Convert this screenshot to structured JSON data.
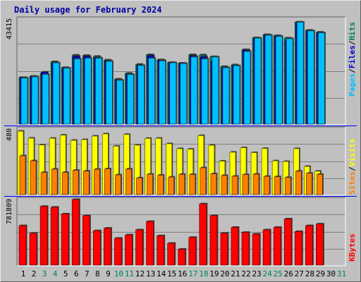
{
  "chart_data": {
    "type": "bar",
    "title": "Daily usage for February 2024",
    "x": {
      "labels": [
        "1",
        "2",
        "3",
        "4",
        "5",
        "6",
        "7",
        "8",
        "9",
        "10",
        "11",
        "12",
        "13",
        "14",
        "15",
        "16",
        "17",
        "18",
        "19",
        "20",
        "21",
        "22",
        "23",
        "24",
        "25",
        "26",
        "27",
        "28",
        "29",
        "30",
        "31"
      ],
      "weekend_days": [
        "3",
        "4",
        "10",
        "11",
        "17",
        "18",
        "24",
        "25",
        "31"
      ],
      "data_days": 29
    },
    "panels": [
      {
        "name": "hits-files-pages",
        "y_max_label": "43415",
        "ymax": 43415,
        "grid": true,
        "series": [
          {
            "name": "Hits",
            "color": "#00805c",
            "values": [
              19300,
              19800,
              21000,
              25800,
              23400,
              28500,
              28400,
              28000,
              26500,
              18600,
              21000,
              24700,
              28700,
              26600,
              25500,
              25200,
              28700,
              28600,
              27900,
              23800,
              24500,
              30800,
              35700,
              37000,
              36600,
              35600,
              42200,
              38800,
              38000
            ]
          },
          {
            "name": "Files",
            "color": "#0000d0",
            "values": [
              19100,
              19600,
              21500,
              25300,
              23100,
              28000,
              28000,
              27500,
              26100,
              18200,
              20500,
              24200,
              28300,
              26400,
              25300,
              25000,
              28300,
              27800,
              26000,
              23300,
              24100,
              30600,
              35400,
              36800,
              36300,
              34500,
              41800,
              38500,
              37700
            ]
          },
          {
            "name": "Pages",
            "color": "#00c0ff",
            "values": [
              19000,
              19500,
              20500,
              25300,
              23100,
              26900,
              27200,
              27200,
              25900,
              18100,
              20500,
              24200,
              27200,
              26100,
              25300,
              25000,
              27700,
              26900,
              27700,
              23300,
              24100,
              30000,
              35500,
              36700,
              36200,
              35300,
              42100,
              38500,
              37700
            ]
          }
        ]
      },
      {
        "name": "visits-sites",
        "y_max_label": "480",
        "ymax": 480,
        "grid": true,
        "series": [
          {
            "name": "Visits",
            "color": "#ffff00",
            "values": [
              464,
              413,
              363,
              412,
              435,
              397,
              402,
              428,
              444,
              354,
              440,
              362,
              411,
              412,
              372,
              336,
              332,
              432,
              361,
              245,
              310,
              343,
              307,
              337,
              247,
              242,
              336,
              206,
              171
            ]
          },
          {
            "name": "Sites",
            "color": "#ff8000",
            "values": [
              284,
              247,
              162,
              186,
              162,
              178,
              172,
              185,
              188,
              144,
              187,
              122,
              149,
              142,
              128,
              148,
              147,
              196,
              152,
              140,
              134,
              146,
              149,
              133,
              131,
              125,
              171,
              156,
              148
            ]
          }
        ]
      },
      {
        "name": "kbytes",
        "y_max_label": "781809",
        "ymax": 781809,
        "grid": true,
        "series": [
          {
            "name": "KBytes",
            "color": "#ff0000",
            "values": [
              470000,
              380000,
              700000,
              690000,
              610000,
              781809,
              590000,
              410000,
              440000,
              320000,
              360000,
              420000,
              520000,
              350000,
              260000,
              190000,
              330000,
              730000,
              590000,
              380000,
              450000,
              390000,
              370000,
              420000,
              450000,
              550000,
              400000,
              470000,
              490000
            ]
          }
        ]
      }
    ],
    "right_labels": {
      "top": [
        "Pages",
        "/",
        "Files",
        "/",
        "Hits"
      ],
      "middle": [
        "Sites",
        "/",
        "Visits"
      ],
      "bottom": [
        "KBytes"
      ]
    }
  },
  "colors": {
    "background": "#c0c0c0",
    "title": "#0000a0",
    "weekend_label": "#00805c",
    "weekday_label": "#000000",
    "separator": "#0000ff",
    "gridline": "#808080"
  }
}
